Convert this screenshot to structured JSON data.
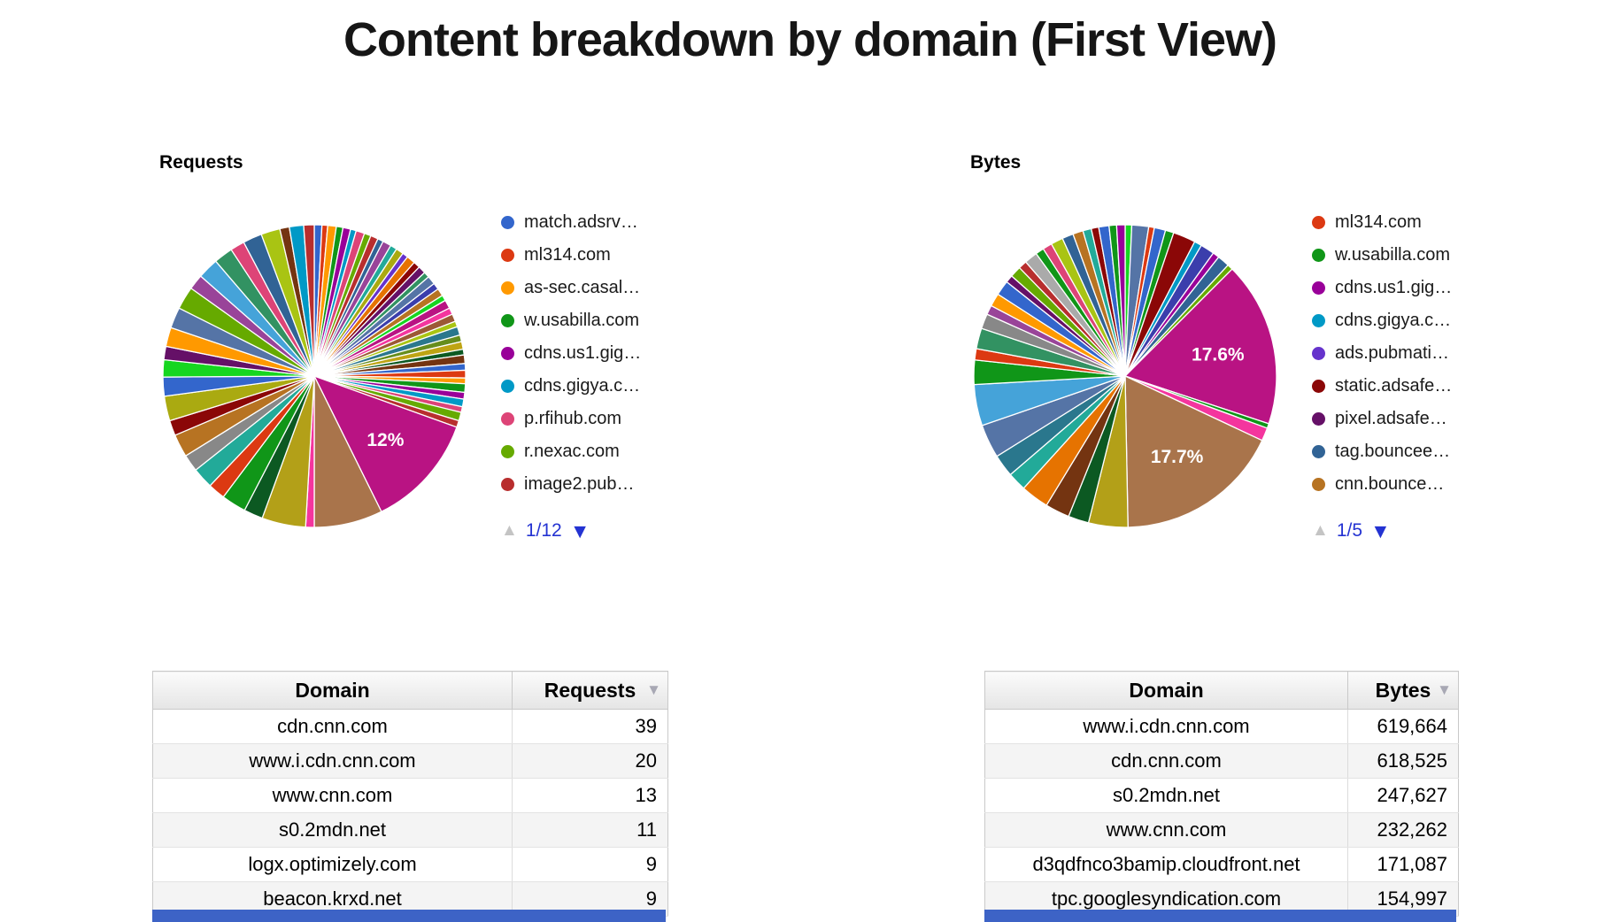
{
  "page": {
    "title": "Content breakdown by domain (First View)"
  },
  "colors": {
    "pager_active": "#2433d2",
    "pager_disabled": "#c4c4c4",
    "sort_icon": "#a8a8b4",
    "bottom_bar": "#3d63c6",
    "slice_label_text": "#ffffff"
  },
  "icons": {
    "legend_prev_icon": "▲",
    "legend_next_icon": "▼",
    "sort_desc_icon": "▼"
  },
  "chart_data": [
    {
      "type": "pie",
      "title": "Requests",
      "legend_position": "right",
      "legend_page": "1/12",
      "legend": [
        {
          "label": "match.adsrv…",
          "color": "#3366cc"
        },
        {
          "label": "ml314.com",
          "color": "#dc3912"
        },
        {
          "label": "as-sec.casal…",
          "color": "#ff9900"
        },
        {
          "label": "w.usabilla.com",
          "color": "#109618"
        },
        {
          "label": "cdns.us1.gig…",
          "color": "#990099"
        },
        {
          "label": "cdns.gigya.c…",
          "color": "#0099c6"
        },
        {
          "label": "p.rfihub.com",
          "color": "#dd4477"
        },
        {
          "label": "r.nexac.com",
          "color": "#66aa00"
        },
        {
          "label": "image2.pub…",
          "color": "#b82e2e"
        }
      ],
      "labeled_slices": [
        {
          "label": "12%",
          "value_pct": 12
        }
      ],
      "slices": [
        [
          0.8,
          "#3366cc"
        ],
        [
          0.6,
          "#dc3912"
        ],
        [
          0.9,
          "#ff9900"
        ],
        [
          0.7,
          "#109618"
        ],
        [
          0.8,
          "#990099"
        ],
        [
          0.6,
          "#0099c6"
        ],
        [
          0.9,
          "#dd4477"
        ],
        [
          0.7,
          "#66aa00"
        ],
        [
          0.8,
          "#b82e2e"
        ],
        [
          0.6,
          "#316395"
        ],
        [
          0.9,
          "#994499"
        ],
        [
          0.7,
          "#22aa99"
        ],
        [
          0.8,
          "#aaaa11"
        ],
        [
          0.6,
          "#6633cc"
        ],
        [
          0.9,
          "#e67300"
        ],
        [
          0.7,
          "#8b0707"
        ],
        [
          0.8,
          "#651067"
        ],
        [
          0.6,
          "#329262"
        ],
        [
          0.9,
          "#5574a6"
        ],
        [
          0.7,
          "#3b3eac"
        ],
        [
          0.8,
          "#b77322"
        ],
        [
          0.6,
          "#16d620"
        ],
        [
          0.9,
          "#b91383"
        ],
        [
          0.7,
          "#f4359e"
        ],
        [
          0.8,
          "#9c5935"
        ],
        [
          0.6,
          "#a9c413"
        ],
        [
          0.9,
          "#2a778d"
        ],
        [
          0.7,
          "#668d1c"
        ],
        [
          0.8,
          "#bea413"
        ],
        [
          0.6,
          "#0c5922"
        ],
        [
          0.9,
          "#743411"
        ],
        [
          0.7,
          "#3366cc"
        ],
        [
          0.8,
          "#dc3912"
        ],
        [
          0.6,
          "#ff9900"
        ],
        [
          0.9,
          "#109618"
        ],
        [
          0.7,
          "#990099"
        ],
        [
          0.8,
          "#0099c6"
        ],
        [
          0.6,
          "#dd4477"
        ],
        [
          0.9,
          "#66aa00"
        ],
        [
          0.7,
          "#b82e2e"
        ],
        [
          12.0,
          "#b91383",
          "12%"
        ],
        [
          7.2,
          "#a9744b"
        ],
        [
          0.9,
          "#f4359e"
        ],
        [
          4.6,
          "#b3a018"
        ],
        [
          2.0,
          "#0c5922"
        ],
        [
          2.6,
          "#109618"
        ],
        [
          1.8,
          "#dc3912"
        ],
        [
          2.2,
          "#22aa99"
        ],
        [
          1.8,
          "#888888"
        ],
        [
          2.4,
          "#b77322"
        ],
        [
          1.6,
          "#8b0707"
        ],
        [
          2.6,
          "#aaaa11"
        ],
        [
          2.0,
          "#3366cc"
        ],
        [
          1.8,
          "#16d620"
        ],
        [
          1.4,
          "#651067"
        ],
        [
          2.0,
          "#ff9900"
        ],
        [
          2.2,
          "#5574a6"
        ],
        [
          2.4,
          "#66aa00"
        ],
        [
          1.6,
          "#994499"
        ],
        [
          2.2,
          "#45a3d9"
        ],
        [
          2.0,
          "#329262"
        ],
        [
          1.5,
          "#dd4477"
        ],
        [
          2.0,
          "#316395"
        ],
        [
          2.0,
          "#a9c413"
        ],
        [
          1.0,
          "#743411"
        ],
        [
          1.5,
          "#0099c6"
        ],
        [
          1.1,
          "#b82e2e"
        ]
      ]
    },
    {
      "type": "pie",
      "title": "Bytes",
      "legend_position": "right",
      "legend_page": "1/5",
      "legend": [
        {
          "label": "ml314.com",
          "color": "#dc3912"
        },
        {
          "label": "w.usabilla.com",
          "color": "#109618"
        },
        {
          "label": "cdns.us1.gig…",
          "color": "#990099"
        },
        {
          "label": "cdns.gigya.c…",
          "color": "#0099c6"
        },
        {
          "label": "ads.pubmati…",
          "color": "#6633cc"
        },
        {
          "label": "static.adsafe…",
          "color": "#8b0707"
        },
        {
          "label": "pixel.adsafe…",
          "color": "#651067"
        },
        {
          "label": "tag.bouncee…",
          "color": "#316395"
        },
        {
          "label": "cnn.bounce…",
          "color": "#b77322"
        }
      ],
      "labeled_slices": [
        {
          "label": "17.6%",
          "value_pct": 17.6
        },
        {
          "label": "17.7%",
          "value_pct": 17.7
        }
      ],
      "slices": [
        [
          0.7,
          "#16d620"
        ],
        [
          1.8,
          "#5574a6"
        ],
        [
          0.6,
          "#dc3912"
        ],
        [
          1.2,
          "#3366cc"
        ],
        [
          0.9,
          "#109618"
        ],
        [
          2.4,
          "#8b0707"
        ],
        [
          0.8,
          "#0099c6"
        ],
        [
          1.5,
          "#3b3eac"
        ],
        [
          0.7,
          "#990099"
        ],
        [
          1.3,
          "#316395"
        ],
        [
          0.6,
          "#66aa00"
        ],
        [
          17.6,
          "#b91383",
          "17.6%"
        ],
        [
          0.5,
          "#109618"
        ],
        [
          1.4,
          "#f4359e"
        ],
        [
          17.7,
          "#a9744b",
          "17.7%"
        ],
        [
          4.2,
          "#b3a018"
        ],
        [
          2.2,
          "#0c5922"
        ],
        [
          2.6,
          "#743411"
        ],
        [
          3.0,
          "#e67300"
        ],
        [
          2.0,
          "#22aa99"
        ],
        [
          2.4,
          "#2a778d"
        ],
        [
          3.6,
          "#5574a6"
        ],
        [
          4.4,
          "#45a3d9"
        ],
        [
          2.6,
          "#109618"
        ],
        [
          1.2,
          "#dc3912"
        ],
        [
          2.2,
          "#329262"
        ],
        [
          1.6,
          "#888888"
        ],
        [
          1.0,
          "#994499"
        ],
        [
          1.4,
          "#ff9900"
        ],
        [
          1.6,
          "#3366cc"
        ],
        [
          0.8,
          "#651067"
        ],
        [
          1.2,
          "#66aa00"
        ],
        [
          0.9,
          "#b82e2e"
        ],
        [
          1.4,
          "#aaaaaa"
        ],
        [
          0.9,
          "#109618"
        ],
        [
          1.0,
          "#dd4477"
        ],
        [
          1.3,
          "#a9c413"
        ],
        [
          1.2,
          "#316395"
        ],
        [
          1.1,
          "#b77322"
        ],
        [
          0.9,
          "#22aa99"
        ],
        [
          0.8,
          "#8b0707"
        ],
        [
          1.1,
          "#3366cc"
        ],
        [
          0.8,
          "#109618"
        ],
        [
          0.9,
          "#990099"
        ]
      ]
    },
    {
      "type": "table",
      "columns": [
        "Domain",
        "Requests"
      ],
      "sorted_by": "Requests",
      "sort_order": "desc",
      "rows": [
        [
          "cdn.cnn.com",
          "39"
        ],
        [
          "www.i.cdn.cnn.com",
          "20"
        ],
        [
          "www.cnn.com",
          "13"
        ],
        [
          "s0.2mdn.net",
          "11"
        ],
        [
          "logx.optimizely.com",
          "9"
        ],
        [
          "beacon.krxd.net",
          "9"
        ]
      ]
    },
    {
      "type": "table",
      "columns": [
        "Domain",
        "Bytes"
      ],
      "sorted_by": "Bytes",
      "sort_order": "desc",
      "rows": [
        [
          "www.i.cdn.cnn.com",
          "619,664"
        ],
        [
          "cdn.cnn.com",
          "618,525"
        ],
        [
          "s0.2mdn.net",
          "247,627"
        ],
        [
          "www.cnn.com",
          "232,262"
        ],
        [
          "d3qdfnco3bamip.cloudfront.net",
          "171,087"
        ],
        [
          "tpc.googlesyndication.com",
          "154,997"
        ]
      ]
    }
  ]
}
